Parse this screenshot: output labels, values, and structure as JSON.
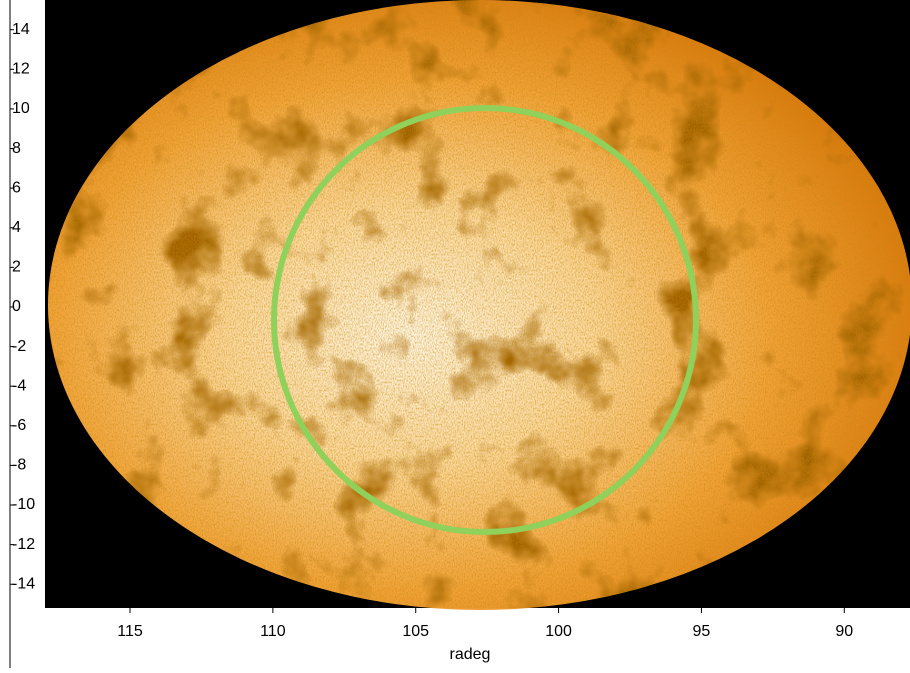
{
  "chart_data": {
    "type": "image",
    "xlabel": "radeg",
    "xlim": [
      119.2,
      87.7
    ],
    "ylim": [
      -15.2,
      15.5
    ],
    "xticks": [
      115,
      110,
      105,
      100,
      95,
      90
    ],
    "yticks": [
      14,
      12,
      10,
      8,
      6,
      4,
      2,
      0,
      -2,
      -4,
      -6,
      -8,
      -10,
      -12,
      -14
    ]
  }
}
